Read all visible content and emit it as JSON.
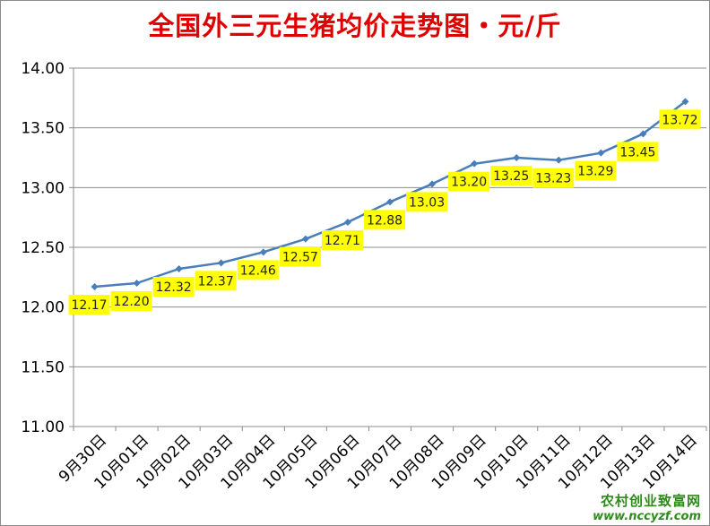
{
  "chart_data": {
    "type": "line",
    "title": "全国外三元生猪均价走势图・元/斤",
    "categories": [
      "9月30日",
      "10月01日",
      "10月02日",
      "10月03日",
      "10月04日",
      "10月05日",
      "10月06日",
      "10月07日",
      "10月08日",
      "10月09日",
      "10月10日",
      "10月11日",
      "10月12日",
      "10月13日",
      "10月14日"
    ],
    "values": [
      12.17,
      12.2,
      12.32,
      12.37,
      12.46,
      12.57,
      12.71,
      12.88,
      13.03,
      13.2,
      13.25,
      13.23,
      13.29,
      13.45,
      13.72
    ],
    "data_labels": [
      "12.17",
      "12.20",
      "12.32",
      "12.37",
      "12.46",
      "12.57",
      "12.71",
      "12.88",
      "13.03",
      "13.20",
      "13.25",
      "13.23",
      "13.29",
      "13.45",
      "13.72"
    ],
    "ylim": [
      11.0,
      14.0
    ],
    "yticks": [
      11.0,
      11.5,
      12.0,
      12.5,
      13.0,
      13.5,
      14.0
    ],
    "ytick_labels": [
      "11.00",
      "11.50",
      "12.00",
      "12.50",
      "13.00",
      "13.50",
      "14.00"
    ],
    "xlabel": "",
    "ylabel": "",
    "grid": true,
    "legend": "none",
    "colors": {
      "line": "#4a7ebb",
      "label_bg": "#ffff00",
      "title": "#e00000",
      "grid": "#8c8c8c",
      "watermark": "#2e8b1a"
    }
  },
  "watermark": {
    "name": "农村创业致富网",
    "url": "www.nccyzf.com"
  }
}
